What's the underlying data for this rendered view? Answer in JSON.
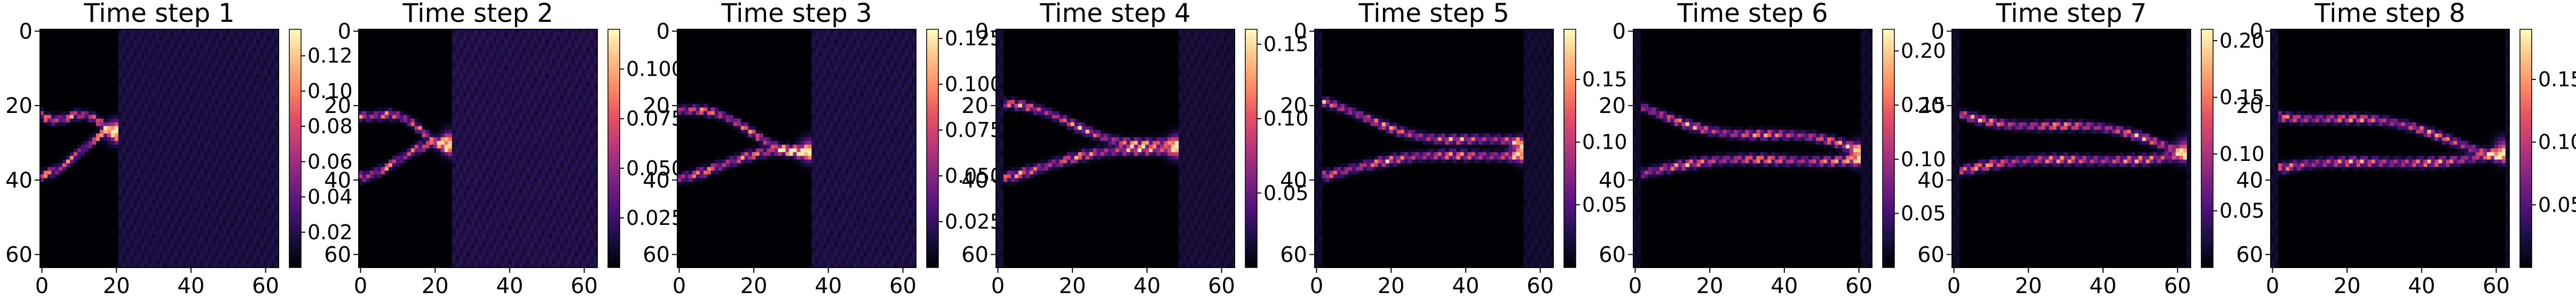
{
  "chart_data": {
    "type": "heatmap",
    "colormap": "magma",
    "grid_size": [
      64,
      64
    ],
    "panels": [
      {
        "title": "Time step 1",
        "x_ticks": [
          "0",
          "20",
          "40",
          "60"
        ],
        "x_tick_values": [
          0,
          20,
          40,
          60
        ],
        "y_ticks": [
          "0",
          "20",
          "40",
          "60"
        ],
        "y_tick_values": [
          0,
          20,
          40,
          60
        ],
        "colorbar": {
          "range": [
            0.0,
            0.135
          ],
          "ticks": [
            "0.02",
            "0.04",
            "0.06",
            "0.08",
            "0.10",
            "0.12"
          ],
          "tick_values": [
            0.02,
            0.04,
            0.06,
            0.08,
            0.1,
            0.12
          ]
        },
        "field": {
          "x_min": 0,
          "x_max": 20,
          "peak": 0.13,
          "tip_y": 27,
          "bands": [
            "upper",
            "lower"
          ]
        }
      },
      {
        "title": "Time step 2",
        "x_ticks": [
          "0",
          "20",
          "40",
          "60"
        ],
        "x_tick_values": [
          0,
          20,
          40,
          60
        ],
        "y_ticks": [
          "0",
          "20",
          "40",
          "60"
        ],
        "y_tick_values": [
          0,
          20,
          40,
          60
        ],
        "colorbar": {
          "range": [
            0.0,
            0.12
          ],
          "ticks": [
            "0.025",
            "0.050",
            "0.075",
            "0.100"
          ],
          "tick_values": [
            0.025,
            0.05,
            0.075,
            0.1
          ]
        },
        "field": {
          "x_min": 0,
          "x_max": 24,
          "peak": 0.11,
          "tip_y": 30,
          "bands": [
            "upper",
            "lower"
          ]
        }
      },
      {
        "title": "Time step 3",
        "x_ticks": [
          "0",
          "20",
          "40",
          "60"
        ],
        "x_tick_values": [
          0,
          20,
          40,
          60
        ],
        "y_ticks": [
          "0",
          "20",
          "40",
          "60"
        ],
        "y_tick_values": [
          0,
          20,
          40,
          60
        ],
        "colorbar": {
          "range": [
            0.0,
            0.13
          ],
          "ticks": [
            "0.025",
            "0.050",
            "0.075",
            "0.100",
            "0.125"
          ],
          "tick_values": [
            0.025,
            0.05,
            0.075,
            0.1,
            0.125
          ]
        },
        "field": {
          "x_min": 0,
          "x_max": 35,
          "peak": 0.125,
          "tip_y": 32,
          "bands": [
            "upper",
            "lower"
          ]
        }
      },
      {
        "title": "Time step 4",
        "x_ticks": [
          "0",
          "20",
          "40",
          "60"
        ],
        "x_tick_values": [
          0,
          20,
          40,
          60
        ],
        "y_ticks": [
          "0",
          "20",
          "40",
          "60"
        ],
        "y_tick_values": [
          0,
          20,
          40,
          60
        ],
        "colorbar": {
          "range": [
            0.0,
            0.16
          ],
          "ticks": [
            "0.05",
            "0.10",
            "0.15"
          ],
          "tick_values": [
            0.05,
            0.1,
            0.15
          ]
        },
        "field": {
          "x_min": 2,
          "x_max": 48,
          "peak": 0.155,
          "tip_y": 31,
          "bands": [
            "upper",
            "lower"
          ]
        }
      },
      {
        "title": "Time step 5",
        "x_ticks": [
          "0",
          "20",
          "40",
          "60"
        ],
        "x_tick_values": [
          0,
          20,
          40,
          60
        ],
        "y_ticks": [
          "0",
          "20",
          "40",
          "60"
        ],
        "y_tick_values": [
          0,
          20,
          40,
          60
        ],
        "colorbar": {
          "range": [
            0.0,
            0.19
          ],
          "ticks": [
            "0.05",
            "0.10",
            "0.15"
          ],
          "tick_values": [
            0.05,
            0.1,
            0.15
          ]
        },
        "field": {
          "x_min": 2,
          "x_max": 55,
          "peak": 0.18,
          "tip_y": 32,
          "bands": [
            "upper",
            "lower"
          ]
        }
      },
      {
        "title": "Time step 6",
        "x_ticks": [
          "0",
          "20",
          "40",
          "60"
        ],
        "x_tick_values": [
          0,
          20,
          40,
          60
        ],
        "y_ticks": [
          "0",
          "20",
          "40",
          "60"
        ],
        "y_tick_values": [
          0,
          20,
          40,
          60
        ],
        "colorbar": {
          "range": [
            0.0,
            0.22
          ],
          "ticks": [
            "0.05",
            "0.10",
            "0.15",
            "0.20"
          ],
          "tick_values": [
            0.05,
            0.1,
            0.15,
            0.2
          ]
        },
        "field": {
          "x_min": 2,
          "x_max": 60,
          "peak": 0.21,
          "tip_y": 33,
          "bands": [
            "upper",
            "lower"
          ]
        }
      },
      {
        "title": "Time step 7",
        "x_ticks": [
          "0",
          "20",
          "40",
          "60"
        ],
        "x_tick_values": [
          0,
          20,
          40,
          60
        ],
        "y_ticks": [
          "0",
          "20",
          "40",
          "60"
        ],
        "y_tick_values": [
          0,
          20,
          40,
          60
        ],
        "colorbar": {
          "range": [
            0.0,
            0.21
          ],
          "ticks": [
            "0.05",
            "0.10",
            "0.15",
            "0.20"
          ],
          "tick_values": [
            0.05,
            0.1,
            0.15,
            0.2
          ]
        },
        "field": {
          "x_min": 2,
          "x_max": 62,
          "peak": 0.2,
          "tip_y": 32,
          "bands": [
            "upper",
            "lower"
          ]
        }
      },
      {
        "title": "Time step 8",
        "x_ticks": [
          "0",
          "20",
          "40",
          "60"
        ],
        "x_tick_values": [
          0,
          20,
          40,
          60
        ],
        "y_ticks": [
          "0",
          "20",
          "40",
          "60"
        ],
        "y_tick_values": [
          0,
          20,
          40,
          60
        ],
        "colorbar": {
          "range": [
            0.0,
            0.19
          ],
          "ticks": [
            "0.05",
            "0.10",
            "0.15"
          ],
          "tick_values": [
            0.05,
            0.1,
            0.15
          ]
        },
        "field": {
          "x_min": 2,
          "x_max": 62,
          "peak": 0.18,
          "tip_y": 32,
          "bands": [
            "upper",
            "lower"
          ]
        }
      }
    ]
  }
}
